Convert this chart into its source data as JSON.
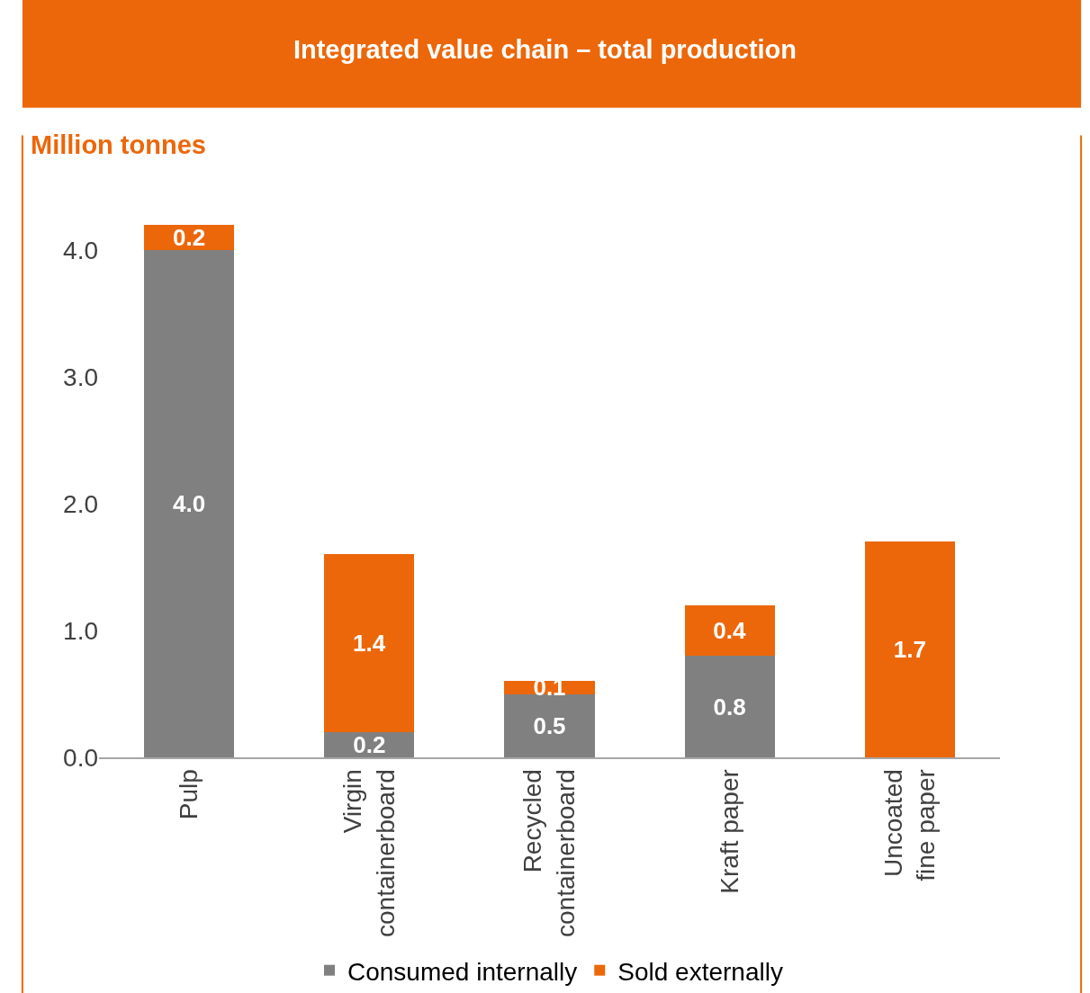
{
  "chart_data": {
    "type": "bar",
    "title": "Integrated value chain – total production",
    "ylabel": "Million tonnes",
    "categories": [
      "Pulp",
      "Virgin containerboard",
      "Recycled containerboard",
      "Kraft paper",
      "Uncoated fine paper"
    ],
    "series": [
      {
        "name": "Consumed internally",
        "color": "#808080",
        "values": [
          4.0,
          0.2,
          0.5,
          0.8,
          null
        ],
        "value_labels": [
          "4.0",
          "0.2",
          "0.5",
          "0.8",
          null
        ]
      },
      {
        "name": "Sold externally",
        "color": "#ec670a",
        "values": [
          0.2,
          1.4,
          0.1,
          0.4,
          1.7
        ],
        "value_labels": [
          "0.2",
          "1.4",
          "0.1",
          "0.4",
          "1.7"
        ]
      }
    ],
    "stacked": true,
    "ylim": [
      0,
      4.2
    ],
    "yticks": [
      {
        "value": 0,
        "label": "0.0"
      },
      {
        "value": 1,
        "label": "1.0"
      },
      {
        "value": 2,
        "label": "2.0"
      },
      {
        "value": 3,
        "label": "3.0"
      },
      {
        "value": 4,
        "label": "4.0"
      }
    ],
    "legend": "bottom"
  }
}
